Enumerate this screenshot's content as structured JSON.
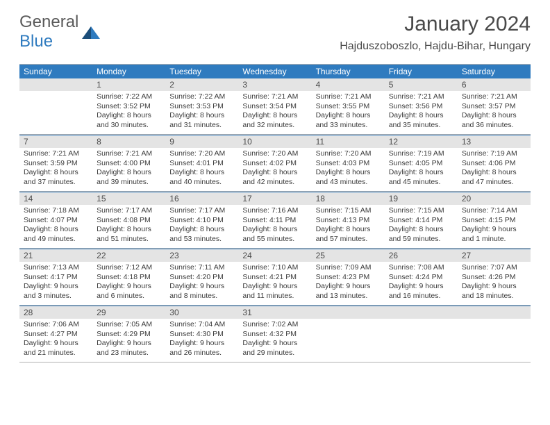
{
  "logo": {
    "general": "General",
    "blue": "Blue"
  },
  "title": "January 2024",
  "location": "Hajduszoboszlo, Hajdu-Bihar, Hungary",
  "colors": {
    "header_bg": "#2f7bbf",
    "header_text": "#ffffff",
    "daynum_bg": "#e4e4e4",
    "text": "#4a4a4a",
    "divider_blue": "#2f7bbf",
    "divider_gray": "#b0b0b0"
  },
  "day_headers": [
    "Sunday",
    "Monday",
    "Tuesday",
    "Wednesday",
    "Thursday",
    "Friday",
    "Saturday"
  ],
  "weeks": [
    [
      {
        "n": "",
        "sunrise": "",
        "sunset": "",
        "daylight": ""
      },
      {
        "n": "1",
        "sunrise": "Sunrise: 7:22 AM",
        "sunset": "Sunset: 3:52 PM",
        "daylight": "Daylight: 8 hours and 30 minutes."
      },
      {
        "n": "2",
        "sunrise": "Sunrise: 7:22 AM",
        "sunset": "Sunset: 3:53 PM",
        "daylight": "Daylight: 8 hours and 31 minutes."
      },
      {
        "n": "3",
        "sunrise": "Sunrise: 7:21 AM",
        "sunset": "Sunset: 3:54 PM",
        "daylight": "Daylight: 8 hours and 32 minutes."
      },
      {
        "n": "4",
        "sunrise": "Sunrise: 7:21 AM",
        "sunset": "Sunset: 3:55 PM",
        "daylight": "Daylight: 8 hours and 33 minutes."
      },
      {
        "n": "5",
        "sunrise": "Sunrise: 7:21 AM",
        "sunset": "Sunset: 3:56 PM",
        "daylight": "Daylight: 8 hours and 35 minutes."
      },
      {
        "n": "6",
        "sunrise": "Sunrise: 7:21 AM",
        "sunset": "Sunset: 3:57 PM",
        "daylight": "Daylight: 8 hours and 36 minutes."
      }
    ],
    [
      {
        "n": "7",
        "sunrise": "Sunrise: 7:21 AM",
        "sunset": "Sunset: 3:59 PM",
        "daylight": "Daylight: 8 hours and 37 minutes."
      },
      {
        "n": "8",
        "sunrise": "Sunrise: 7:21 AM",
        "sunset": "Sunset: 4:00 PM",
        "daylight": "Daylight: 8 hours and 39 minutes."
      },
      {
        "n": "9",
        "sunrise": "Sunrise: 7:20 AM",
        "sunset": "Sunset: 4:01 PM",
        "daylight": "Daylight: 8 hours and 40 minutes."
      },
      {
        "n": "10",
        "sunrise": "Sunrise: 7:20 AM",
        "sunset": "Sunset: 4:02 PM",
        "daylight": "Daylight: 8 hours and 42 minutes."
      },
      {
        "n": "11",
        "sunrise": "Sunrise: 7:20 AM",
        "sunset": "Sunset: 4:03 PM",
        "daylight": "Daylight: 8 hours and 43 minutes."
      },
      {
        "n": "12",
        "sunrise": "Sunrise: 7:19 AM",
        "sunset": "Sunset: 4:05 PM",
        "daylight": "Daylight: 8 hours and 45 minutes."
      },
      {
        "n": "13",
        "sunrise": "Sunrise: 7:19 AM",
        "sunset": "Sunset: 4:06 PM",
        "daylight": "Daylight: 8 hours and 47 minutes."
      }
    ],
    [
      {
        "n": "14",
        "sunrise": "Sunrise: 7:18 AM",
        "sunset": "Sunset: 4:07 PM",
        "daylight": "Daylight: 8 hours and 49 minutes."
      },
      {
        "n": "15",
        "sunrise": "Sunrise: 7:17 AM",
        "sunset": "Sunset: 4:08 PM",
        "daylight": "Daylight: 8 hours and 51 minutes."
      },
      {
        "n": "16",
        "sunrise": "Sunrise: 7:17 AM",
        "sunset": "Sunset: 4:10 PM",
        "daylight": "Daylight: 8 hours and 53 minutes."
      },
      {
        "n": "17",
        "sunrise": "Sunrise: 7:16 AM",
        "sunset": "Sunset: 4:11 PM",
        "daylight": "Daylight: 8 hours and 55 minutes."
      },
      {
        "n": "18",
        "sunrise": "Sunrise: 7:15 AM",
        "sunset": "Sunset: 4:13 PM",
        "daylight": "Daylight: 8 hours and 57 minutes."
      },
      {
        "n": "19",
        "sunrise": "Sunrise: 7:15 AM",
        "sunset": "Sunset: 4:14 PM",
        "daylight": "Daylight: 8 hours and 59 minutes."
      },
      {
        "n": "20",
        "sunrise": "Sunrise: 7:14 AM",
        "sunset": "Sunset: 4:15 PM",
        "daylight": "Daylight: 9 hours and 1 minute."
      }
    ],
    [
      {
        "n": "21",
        "sunrise": "Sunrise: 7:13 AM",
        "sunset": "Sunset: 4:17 PM",
        "daylight": "Daylight: 9 hours and 3 minutes."
      },
      {
        "n": "22",
        "sunrise": "Sunrise: 7:12 AM",
        "sunset": "Sunset: 4:18 PM",
        "daylight": "Daylight: 9 hours and 6 minutes."
      },
      {
        "n": "23",
        "sunrise": "Sunrise: 7:11 AM",
        "sunset": "Sunset: 4:20 PM",
        "daylight": "Daylight: 9 hours and 8 minutes."
      },
      {
        "n": "24",
        "sunrise": "Sunrise: 7:10 AM",
        "sunset": "Sunset: 4:21 PM",
        "daylight": "Daylight: 9 hours and 11 minutes."
      },
      {
        "n": "25",
        "sunrise": "Sunrise: 7:09 AM",
        "sunset": "Sunset: 4:23 PM",
        "daylight": "Daylight: 9 hours and 13 minutes."
      },
      {
        "n": "26",
        "sunrise": "Sunrise: 7:08 AM",
        "sunset": "Sunset: 4:24 PM",
        "daylight": "Daylight: 9 hours and 16 minutes."
      },
      {
        "n": "27",
        "sunrise": "Sunrise: 7:07 AM",
        "sunset": "Sunset: 4:26 PM",
        "daylight": "Daylight: 9 hours and 18 minutes."
      }
    ],
    [
      {
        "n": "28",
        "sunrise": "Sunrise: 7:06 AM",
        "sunset": "Sunset: 4:27 PM",
        "daylight": "Daylight: 9 hours and 21 minutes."
      },
      {
        "n": "29",
        "sunrise": "Sunrise: 7:05 AM",
        "sunset": "Sunset: 4:29 PM",
        "daylight": "Daylight: 9 hours and 23 minutes."
      },
      {
        "n": "30",
        "sunrise": "Sunrise: 7:04 AM",
        "sunset": "Sunset: 4:30 PM",
        "daylight": "Daylight: 9 hours and 26 minutes."
      },
      {
        "n": "31",
        "sunrise": "Sunrise: 7:02 AM",
        "sunset": "Sunset: 4:32 PM",
        "daylight": "Daylight: 9 hours and 29 minutes."
      },
      {
        "n": "",
        "sunrise": "",
        "sunset": "",
        "daylight": ""
      },
      {
        "n": "",
        "sunrise": "",
        "sunset": "",
        "daylight": ""
      },
      {
        "n": "",
        "sunrise": "",
        "sunset": "",
        "daylight": ""
      }
    ]
  ]
}
